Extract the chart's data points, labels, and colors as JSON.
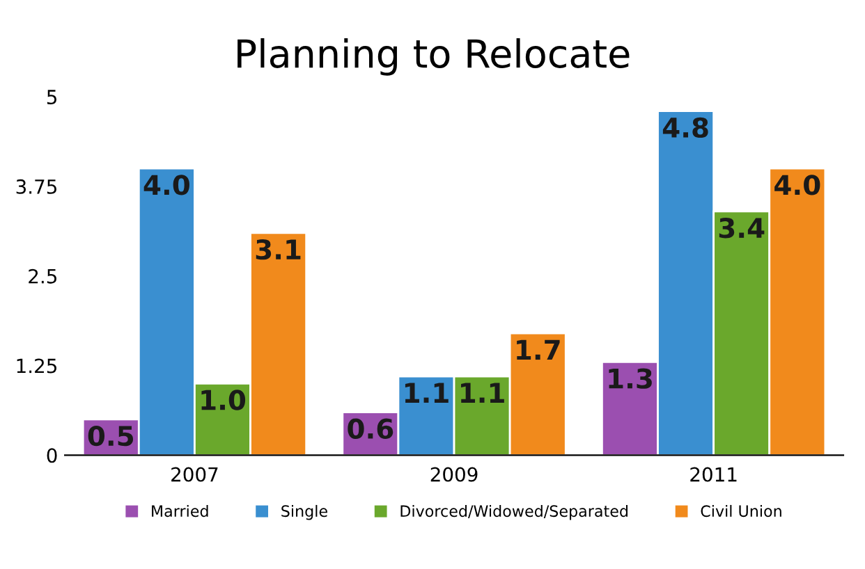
{
  "chart_data": {
    "type": "bar",
    "title": "Planning to Relocate",
    "categories": [
      "2007",
      "2009",
      "2011"
    ],
    "series": [
      {
        "name": "Married",
        "color": "#9b4fb0",
        "values": [
          0.5,
          0.6,
          1.3
        ],
        "value_labels": [
          "0.5",
          "0.6",
          "1.3"
        ]
      },
      {
        "name": "Single",
        "color": "#3a8fd0",
        "values": [
          4.0,
          1.1,
          4.8
        ],
        "value_labels": [
          "4.0",
          "1.1",
          "4.8"
        ]
      },
      {
        "name": "Divorced/Widowed/Separated",
        "color": "#6aa82c",
        "values": [
          1.0,
          1.1,
          3.4
        ],
        "value_labels": [
          "1.0",
          "1.1",
          "3.4"
        ]
      },
      {
        "name": "Civil Union",
        "color": "#f18a1c",
        "values": [
          3.1,
          1.7,
          4.0
        ],
        "value_labels": [
          "3.1",
          "1.7",
          "4.0"
        ]
      }
    ],
    "ylim": [
      0,
      5
    ],
    "yticks": [
      0,
      1.25,
      2.5,
      3.75,
      5
    ],
    "grid": false,
    "legend": "bottom"
  }
}
